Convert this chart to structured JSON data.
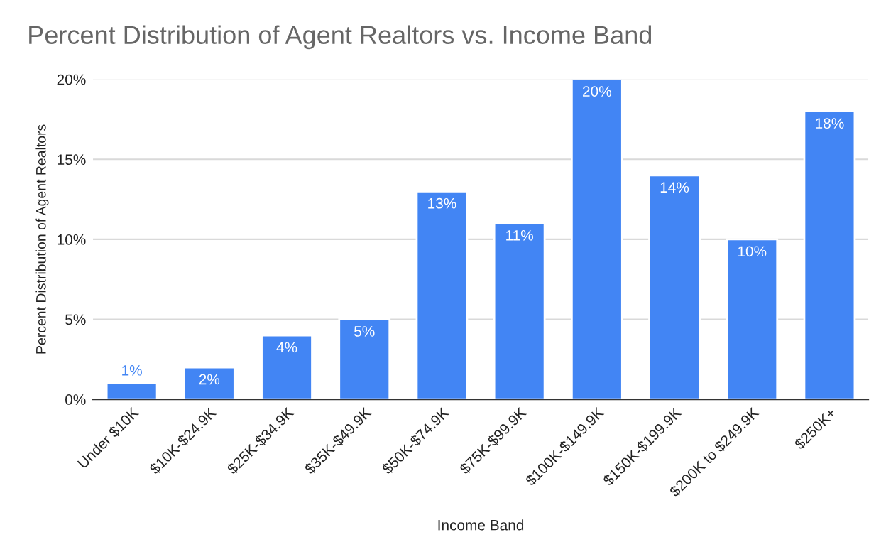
{
  "chart_data": {
    "type": "bar",
    "title": "Percent Distribution of Agent Realtors vs. Income Band",
    "xlabel": "Income Band",
    "ylabel": "Percent Distribution of Agent Realtors",
    "categories": [
      "Under $10K",
      "$10K-$24.9K",
      "$25K-$34.9K",
      "$35K-$49.9K",
      "$50K-$74.9K",
      "$75K-$99.9K",
      "$100K-$149.9K",
      "$150K-$199.9K",
      "$200K to $249.9K",
      "$250K+"
    ],
    "values": [
      1,
      2,
      4,
      5,
      13,
      11,
      20,
      14,
      10,
      18
    ],
    "value_labels": [
      "1%",
      "2%",
      "4%",
      "5%",
      "13%",
      "11%",
      "20%",
      "14%",
      "10%",
      "18%"
    ],
    "color": "#4285f4",
    "ylim": [
      0,
      20
    ],
    "yticks": [
      {
        "value": 0,
        "label": "0%"
      },
      {
        "value": 5,
        "label": "5%"
      },
      {
        "value": 10,
        "label": "10%"
      },
      {
        "value": 15,
        "label": "15%"
      },
      {
        "value": 20,
        "label": "20%"
      }
    ],
    "grid": "y",
    "legend": false
  }
}
